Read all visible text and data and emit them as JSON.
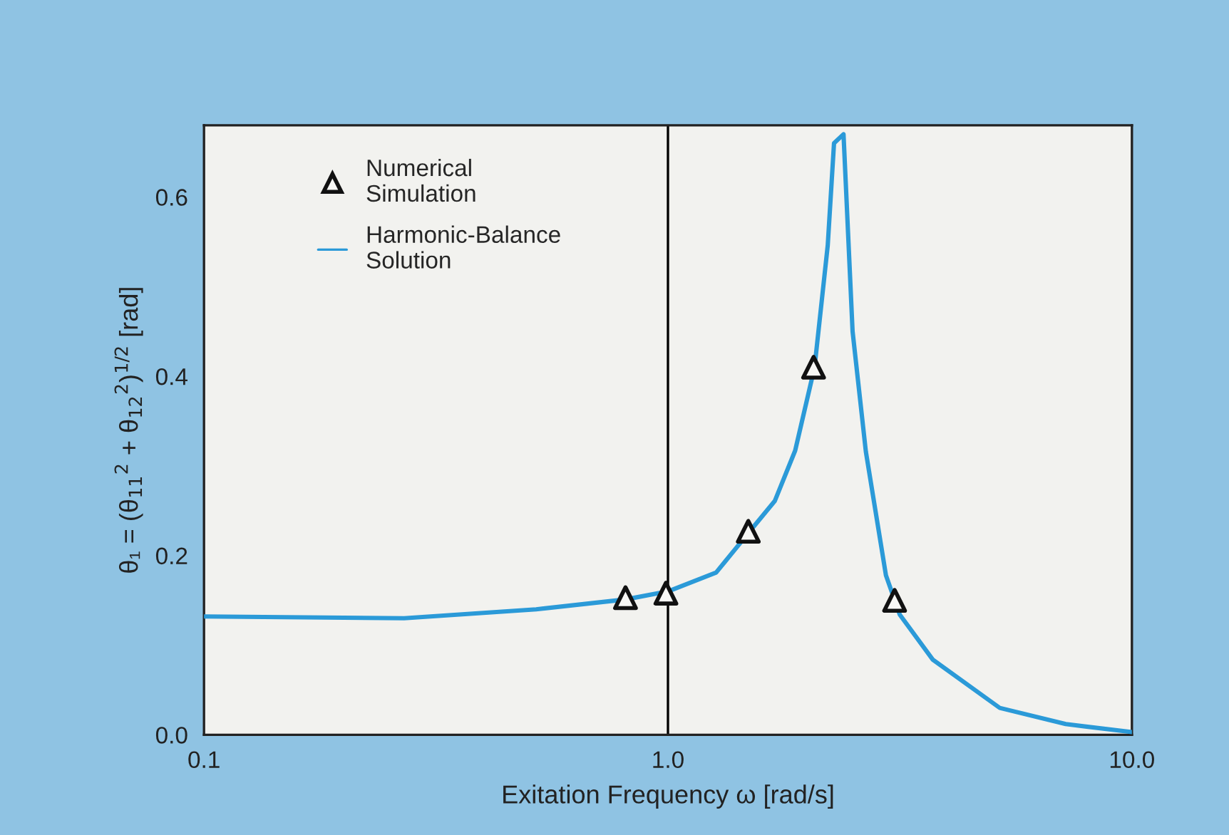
{
  "chart_data": {
    "type": "line",
    "xlabel": "Exitation Frequency ω [rad/s]",
    "ylabel": "θ₁ = (θ$_{11}$$^{2}$ + θ$_{12}$$^{2}$)$^{1/2}$ [rad]",
    "log": "x",
    "grid": false,
    "legend": "top left",
    "xlim": [
      0.1,
      10
    ],
    "xticks": [
      0.1,
      {
        "value": 1,
        "label": "1.0"
      },
      {
        "value": 10,
        "label": "10.0"
      }
    ],
    "ylim": [
      0,
      0.68
    ],
    "yticks": [
      {
        "value": 0,
        "label": "0.0"
      },
      0.2,
      0.4,
      0.6
    ],
    "ref_lines": [
      {
        "axis": "x",
        "value": 1,
        "color": "#000000",
        "line_style": "solid"
      }
    ],
    "series": [
      {
        "name": "Numerical\nSimulation",
        "type": "scatter",
        "marker": "triangle",
        "color": "#111111",
        "x": [
          0.81,
          0.99,
          1.49,
          2.06,
          3.08
        ],
        "values": [
          0.153,
          0.158,
          0.227,
          0.41,
          0.15
        ]
      },
      {
        "name": "Harmonic-Balance\nSolution",
        "marker": "none",
        "line_style": "solid",
        "color": "#2b9ad8",
        "x": [
          0.1,
          0.27,
          0.52,
          0.81,
          1.0,
          1.27,
          1.49,
          1.7,
          1.88,
          2.07,
          2.21,
          2.28,
          2.39,
          2.5,
          2.67,
          2.95,
          3.16,
          3.72,
          5.19,
          7.2,
          10
        ],
        "values": [
          0.132,
          0.13,
          0.14,
          0.151,
          0.16,
          0.181,
          0.225,
          0.261,
          0.317,
          0.41,
          0.546,
          0.66,
          0.67,
          0.45,
          0.316,
          0.178,
          0.134,
          0.084,
          0.03,
          0.012,
          0.003
        ]
      }
    ]
  }
}
